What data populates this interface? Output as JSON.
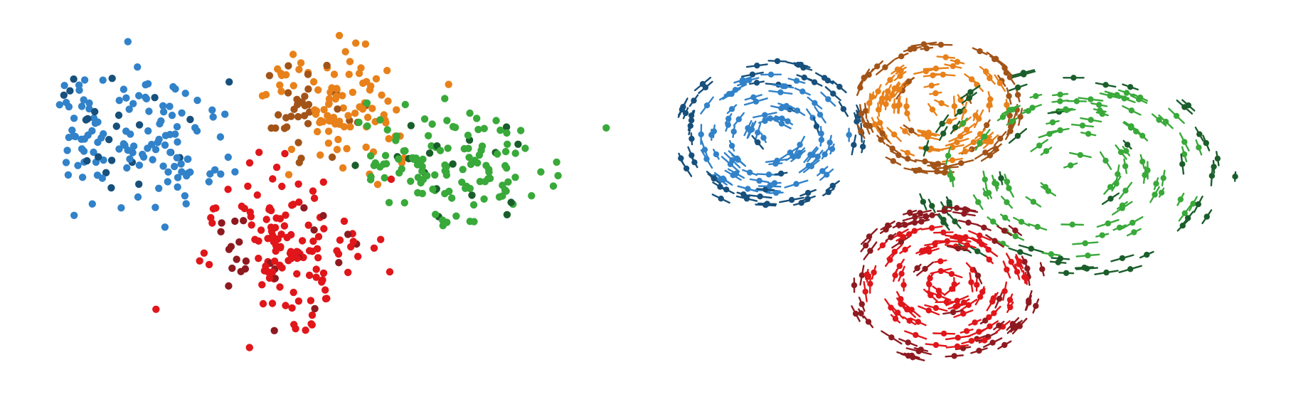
{
  "panels": [
    {
      "style": "scatter"
    },
    {
      "style": "spiral"
    }
  ],
  "clusters": [
    {
      "key": "blue",
      "color": "#3182c9",
      "dark_color": "#17507c"
    },
    {
      "key": "orange",
      "color": "#e8811a",
      "dark_color": "#a25418"
    },
    {
      "key": "green",
      "color": "#39a93a",
      "dark_color": "#1a5e2b"
    },
    {
      "key": "red",
      "color": "#e0161a",
      "dark_color": "#8e1a20"
    }
  ]
}
